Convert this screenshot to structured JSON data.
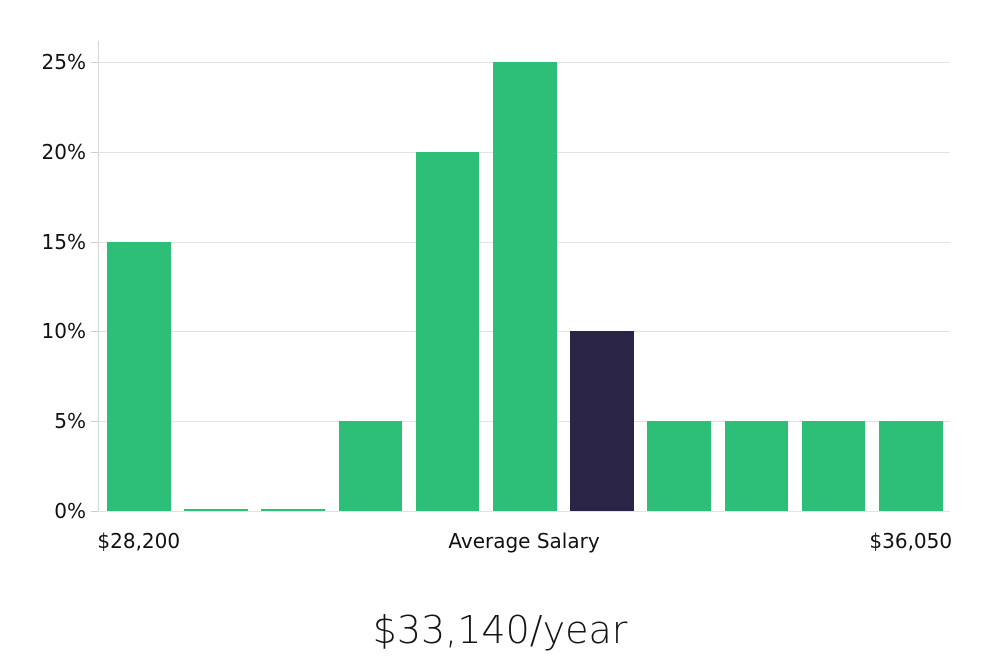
{
  "page": {
    "background": "#ffffff"
  },
  "chart_data": {
    "type": "bar",
    "title": "$33,140/year",
    "values": [
      15,
      0.1,
      0.1,
      5,
      20,
      25,
      10,
      5,
      5,
      5,
      5
    ],
    "highlight_index": 6,
    "bar_color": "#2dbe78",
    "highlight_color": "#2a2447",
    "ylim": [
      0,
      25
    ],
    "y_ticks": [
      {
        "value": 0,
        "label": "0%"
      },
      {
        "value": 5,
        "label": "5%"
      },
      {
        "value": 10,
        "label": "10%"
      },
      {
        "value": 15,
        "label": "15%"
      },
      {
        "value": 20,
        "label": "20%"
      },
      {
        "value": 25,
        "label": "25%"
      }
    ],
    "x_labels": [
      {
        "text": "$28,200",
        "anchor": "first-bar"
      },
      {
        "text": "Average Salary",
        "anchor": "center"
      },
      {
        "text": "$36,050",
        "anchor": "last-bar"
      }
    ],
    "xlabel": "",
    "ylabel": "",
    "grid": "horizontal",
    "legend": "none",
    "gridline_color": "#e3e3e3",
    "axis_color": "#d6d6d6",
    "tick_color": "#cccccc",
    "label_color": "#111111"
  }
}
